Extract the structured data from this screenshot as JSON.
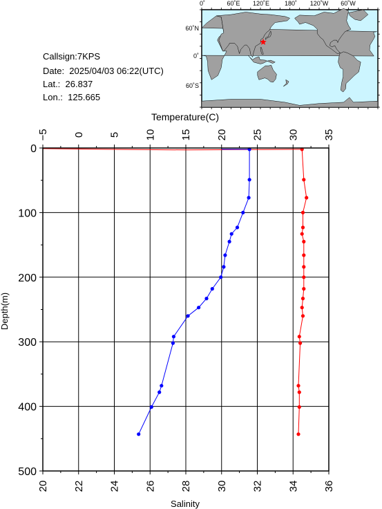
{
  "info": {
    "callsign": "Callsign:7KPS",
    "date": "Date:  2025/04/03 06:22(UTC)",
    "lat": "Lat.:  26.837",
    "lon": "Lon.:  125.665"
  },
  "map": {
    "top_labels": [
      "0˚",
      "60˚E",
      "120˚E",
      "180˚",
      "120˚W",
      "60˚W"
    ],
    "left_labels": [
      "60˚N",
      "0˚",
      "60˚S"
    ],
    "ocean_color": "#ccf5ff",
    "land_color": "#a0a0a0",
    "marker_color": "#ff0000",
    "station": {
      "lat": 26.837,
      "lon": 125.665
    }
  },
  "chart_data": {
    "type": "line",
    "top_axis_label": "Temperature(C)",
    "bottom_axis_label": "Salinity",
    "y_axis_label": "Depth(m)",
    "temperature_ticks": [
      "−5",
      "0",
      "5",
      "10",
      "15",
      "20",
      "25",
      "30",
      "35"
    ],
    "salinity_ticks": [
      "20",
      "22",
      "24",
      "26",
      "28",
      "30",
      "32",
      "34",
      "36"
    ],
    "depth_ticks": [
      "0",
      "100",
      "200",
      "300",
      "400",
      "500"
    ],
    "temperature_range": [
      -5,
      35
    ],
    "salinity_range": [
      20,
      36
    ],
    "depth_range": [
      0,
      500
    ],
    "grid": true,
    "series": [
      {
        "color": "#0000ff",
        "axis": "temperature",
        "depth": [
          2,
          49,
          77,
          100,
          123,
          133,
          145,
          166,
          184,
          200,
          218,
          233,
          247,
          260,
          292,
          302,
          368,
          378,
          401,
          443
        ],
        "values": [
          23.9,
          23.9,
          23.8,
          23.0,
          22.2,
          21.4,
          21.1,
          20.5,
          20.3,
          19.9,
          18.7,
          17.9,
          16.8,
          15.3,
          13.3,
          13.2,
          11.6,
          11.3,
          10.2,
          8.4
        ]
      },
      {
        "color": "#ff0000",
        "axis": "salinity",
        "depth": [
          2,
          49,
          77,
          100,
          123,
          133,
          145,
          166,
          184,
          200,
          218,
          233,
          247,
          260,
          292,
          302,
          368,
          378,
          401,
          443
        ],
        "values": [
          34.5,
          34.6,
          34.75,
          34.55,
          34.55,
          34.5,
          34.6,
          34.6,
          34.6,
          34.6,
          34.6,
          34.55,
          34.5,
          34.55,
          34.35,
          34.4,
          34.3,
          34.35,
          34.35,
          34.3
        ]
      }
    ],
    "surface_traces": [
      {
        "color": "#ff0000",
        "axis": "salinity",
        "points": [
          [
            20,
            1
          ],
          [
            23.5,
            2
          ],
          [
            28,
            3
          ],
          [
            32,
            2.5
          ],
          [
            34.5,
            2
          ]
        ]
      },
      {
        "color": "#0000ff",
        "axis": "temperature",
        "points": [
          [
            20,
            2
          ],
          [
            23.9,
            2
          ]
        ]
      }
    ]
  }
}
